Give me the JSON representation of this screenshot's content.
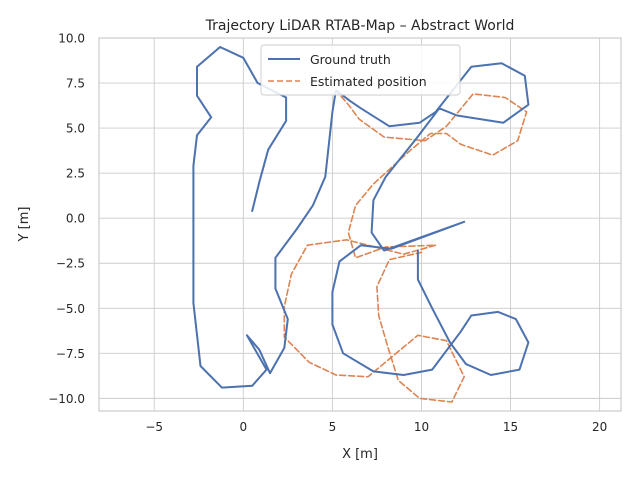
{
  "chart_data": {
    "type": "line",
    "title": "Trajectory LiDAR RTAB-Map – Abstract World",
    "xlabel": "X [m]",
    "ylabel": "Y [m]",
    "xlim": [
      -8.1,
      21.2
    ],
    "ylim": [
      -10.7,
      10.0
    ],
    "xticks": [
      -5,
      0,
      5,
      10,
      15,
      20
    ],
    "yticks": [
      -10.0,
      -7.5,
      -5.0,
      -2.5,
      0.0,
      2.5,
      5.0,
      7.5,
      10.0
    ],
    "ytick_labels": [
      "−10.0",
      "−7.5",
      "−5.0",
      "−2.5",
      "0.0",
      "2.5",
      "5.0",
      "7.5",
      "10.0"
    ],
    "xtick_labels": [
      "−5",
      "0",
      "5",
      "10",
      "15",
      "20"
    ],
    "grid": true,
    "legend_position": "top-center",
    "series": [
      {
        "name": "Ground truth",
        "color": "#4c72b0",
        "style": "solid",
        "points": [
          [
            0.5,
            0.4
          ],
          [
            0.9,
            2.0
          ],
          [
            1.4,
            3.8
          ],
          [
            2.4,
            5.4
          ],
          [
            2.4,
            6.7
          ],
          [
            0.8,
            7.5
          ],
          [
            0.0,
            8.9
          ],
          [
            -1.3,
            9.5
          ],
          [
            -2.6,
            8.4
          ],
          [
            -2.6,
            6.8
          ],
          [
            -1.8,
            5.6
          ],
          [
            -2.6,
            4.6
          ],
          [
            -2.8,
            2.9
          ],
          [
            -2.8,
            -4.7
          ],
          [
            -2.4,
            -8.2
          ],
          [
            -1.2,
            -9.4
          ],
          [
            0.5,
            -9.3
          ],
          [
            1.3,
            -8.4
          ],
          [
            0.2,
            -6.5
          ],
          [
            0.9,
            -7.3
          ],
          [
            1.5,
            -8.6
          ],
          [
            2.3,
            -7.2
          ],
          [
            2.5,
            -5.6
          ],
          [
            1.8,
            -3.9
          ],
          [
            1.8,
            -2.2
          ],
          [
            3.0,
            -0.6
          ],
          [
            3.9,
            0.7
          ],
          [
            4.6,
            2.3
          ],
          [
            5.0,
            5.9
          ],
          [
            5.2,
            7.1
          ],
          [
            6.0,
            6.5
          ],
          [
            6.6,
            6.1
          ],
          [
            8.2,
            5.1
          ],
          [
            9.9,
            5.3
          ],
          [
            10.8,
            5.9
          ],
          [
            12.8,
            8.4
          ],
          [
            14.5,
            8.6
          ],
          [
            15.8,
            7.9
          ],
          [
            16.0,
            6.3
          ],
          [
            14.6,
            5.3
          ],
          [
            12.0,
            5.7
          ],
          [
            11.0,
            6.1
          ],
          [
            9.7,
            4.4
          ],
          [
            8.0,
            2.3
          ],
          [
            7.3,
            1.0
          ],
          [
            7.2,
            -0.8
          ],
          [
            7.9,
            -1.8
          ],
          [
            12.4,
            -0.2
          ],
          [
            8.3,
            -1.7
          ],
          [
            6.6,
            -1.5
          ],
          [
            5.4,
            -2.4
          ],
          [
            5.0,
            -4.1
          ],
          [
            5.0,
            -5.9
          ],
          [
            5.6,
            -7.5
          ],
          [
            7.3,
            -8.5
          ],
          [
            9.0,
            -8.7
          ],
          [
            10.6,
            -8.4
          ],
          [
            12.2,
            -6.3
          ],
          [
            12.8,
            -5.4
          ],
          [
            14.3,
            -5.2
          ],
          [
            15.3,
            -5.6
          ],
          [
            16.0,
            -6.9
          ],
          [
            15.5,
            -8.4
          ],
          [
            13.9,
            -8.7
          ],
          [
            12.5,
            -8.1
          ],
          [
            11.6,
            -6.9
          ],
          [
            10.6,
            -5.0
          ],
          [
            9.8,
            -3.4
          ],
          [
            9.8,
            -1.8
          ]
        ]
      },
      {
        "name": "Estimated position",
        "color": "#dd8452",
        "style": "dashed",
        "points": [
          [
            0.5,
            0.4
          ],
          [
            0.9,
            2.0
          ],
          [
            1.4,
            3.8
          ],
          [
            2.4,
            5.4
          ],
          [
            2.4,
            6.7
          ],
          [
            0.8,
            7.5
          ],
          [
            0.0,
            8.9
          ],
          [
            -1.3,
            9.5
          ],
          [
            -2.6,
            8.4
          ],
          [
            -2.6,
            6.8
          ],
          [
            -1.8,
            5.6
          ],
          [
            -2.6,
            4.6
          ],
          [
            -2.8,
            2.9
          ],
          [
            -2.8,
            -4.7
          ],
          [
            -2.4,
            -8.2
          ],
          [
            -1.2,
            -9.4
          ],
          [
            0.5,
            -9.3
          ],
          [
            1.3,
            -8.4
          ],
          [
            0.2,
            -6.5
          ],
          [
            0.9,
            -7.3
          ],
          [
            1.5,
            -8.6
          ],
          [
            2.3,
            -7.2
          ],
          [
            2.5,
            -5.6
          ],
          [
            1.8,
            -3.9
          ],
          [
            1.8,
            -2.2
          ],
          [
            3.0,
            -0.6
          ],
          [
            3.9,
            0.7
          ],
          [
            4.6,
            2.3
          ],
          [
            5.0,
            5.9
          ],
          [
            5.2,
            7.1
          ],
          [
            5.9,
            6.3
          ],
          [
            6.5,
            5.5
          ],
          [
            7.9,
            4.5
          ],
          [
            10.2,
            4.3
          ],
          [
            11.4,
            5.1
          ],
          [
            12.9,
            6.9
          ],
          [
            14.7,
            6.7
          ],
          [
            15.9,
            5.9
          ],
          [
            15.4,
            4.3
          ],
          [
            14.0,
            3.5
          ],
          [
            12.2,
            4.1
          ],
          [
            11.4,
            4.7
          ],
          [
            10.5,
            4.7
          ],
          [
            9.3,
            3.7
          ],
          [
            7.3,
            1.9
          ],
          [
            6.3,
            0.7
          ],
          [
            5.9,
            -0.8
          ],
          [
            6.3,
            -2.2
          ],
          [
            8.0,
            -1.6
          ],
          [
            10.8,
            -1.5
          ],
          [
            9.0,
            -2.0
          ],
          [
            5.8,
            -1.2
          ],
          [
            3.6,
            -1.5
          ],
          [
            2.7,
            -3.1
          ],
          [
            2.3,
            -4.9
          ],
          [
            2.3,
            -6.6
          ],
          [
            3.7,
            -8.0
          ],
          [
            5.2,
            -8.7
          ],
          [
            7.0,
            -8.8
          ],
          [
            8.7,
            -7.4
          ],
          [
            9.8,
            -6.5
          ],
          [
            11.4,
            -6.8
          ],
          [
            12.4,
            -8.8
          ],
          [
            11.7,
            -10.2
          ],
          [
            9.9,
            -10.0
          ],
          [
            8.7,
            -9.0
          ],
          [
            8.1,
            -7.1
          ],
          [
            7.6,
            -5.4
          ],
          [
            7.5,
            -3.8
          ],
          [
            8.2,
            -2.3
          ],
          [
            10.0,
            -1.9
          ]
        ]
      }
    ]
  }
}
